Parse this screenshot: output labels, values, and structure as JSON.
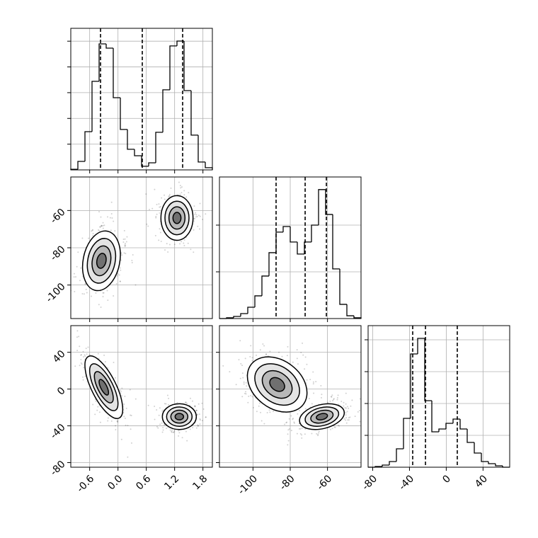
{
  "chart_data": {
    "type": "corner",
    "params": [
      {
        "xlim": [
          -1,
          2
        ],
        "ticks": [
          -0.6,
          {
            "value": 0,
            "label": "0.0"
          },
          0.6,
          1.2,
          1.8
        ]
      },
      {
        "xlim": [
          -118,
          -42
        ],
        "ticks": [
          -100,
          -80,
          -60
        ]
      },
      {
        "xlim": [
          -85,
          69
        ],
        "ticks": [
          -80,
          -40,
          0,
          40
        ]
      }
    ],
    "histograms": [
      {
        "bins": [
          -1,
          -0.85,
          -0.7,
          -0.55,
          -0.4,
          -0.25,
          -0.1,
          0.05,
          0.2,
          0.35,
          0.5,
          0.65,
          0.8,
          0.95,
          1.1,
          1.25,
          1.4,
          1.55,
          1.7,
          1.85,
          2
        ],
        "values": [
          5,
          66,
          297,
          688,
          979,
          946,
          561,
          314,
          160,
          110,
          28,
          55,
          292,
          622,
          963,
          1001,
          616,
          270,
          61,
          17
        ],
        "ylim": [
          0,
          1100
        ],
        "yticks": [
          200,
          400,
          600,
          800,
          1000
        ],
        "quantiles": [
          -0.37,
          0.515,
          1.37
        ]
      },
      {
        "bins": [
          -118,
          -114.2,
          -110.4,
          -106.6,
          -102.8,
          -99,
          -95.2,
          -91.4,
          -87.6,
          -83.8,
          -80,
          -76.2,
          -72.4,
          -68.6,
          -64.8,
          -61,
          -57.2,
          -53.4,
          -49.6,
          -45.8,
          -42
        ],
        "values": [
          0,
          8,
          23,
          53,
          121,
          243,
          455,
          705,
          925,
          985,
          819,
          690,
          819,
          1000,
          1380,
          1114,
          531,
          152,
          30,
          8
        ],
        "ylim": [
          0,
          1515
        ],
        "yticks": [
          500,
          1000
        ],
        "quantiles": [
          -87.6,
          -72,
          -60.6
        ]
      },
      {
        "bins": [
          -85,
          -77.3,
          -69.6,
          -61.9,
          -54.2,
          -46.5,
          -38.8,
          -31.1,
          -23.4,
          -15.7,
          -8,
          -0.3,
          7.4,
          15.1,
          22.8,
          30.5,
          38.2,
          45.9,
          53.6,
          61.3,
          69
        ],
        "values": [
          0,
          22,
          67,
          178,
          578,
          1533,
          3556,
          4044,
          2089,
          1111,
          1200,
          1378,
          1511,
          1200,
          778,
          444,
          178,
          111,
          44,
          0
        ],
        "ylim": [
          0,
          4444
        ],
        "yticks": [
          1000,
          2000,
          3000,
          4000
        ],
        "quantiles": [
          -36.5,
          -22.6,
          12
        ]
      }
    ],
    "contour_levels": [
      2,
      1.5,
      1,
      0.5
    ],
    "panels": [
      {
        "x_param": 0,
        "y_param": 1,
        "clusters": [
          {
            "x": -0.35,
            "y": -87,
            "sx": 0.2,
            "sy": 8,
            "rho": 0.2
          },
          {
            "x": 1.25,
            "y": -64,
            "sx": 0.17,
            "sy": 6,
            "rho": 0
          }
        ]
      },
      {
        "x_param": 0,
        "y_param": 2,
        "clusters": [
          {
            "x": -0.3,
            "y": 2,
            "sx": 0.2,
            "sy": 17,
            "rho": -0.7
          },
          {
            "x": 1.3,
            "y": -30,
            "sx": 0.18,
            "sy": 7,
            "rho": 0
          }
        ]
      },
      {
        "x_param": 1,
        "y_param": 2,
        "clusters": [
          {
            "x": -87,
            "y": 5,
            "sx": 8,
            "sy": 15,
            "rho": -0.3
          },
          {
            "x": -63,
            "y": -30,
            "sx": 6,
            "sy": 7,
            "rho": 0.3
          }
        ]
      }
    ]
  }
}
